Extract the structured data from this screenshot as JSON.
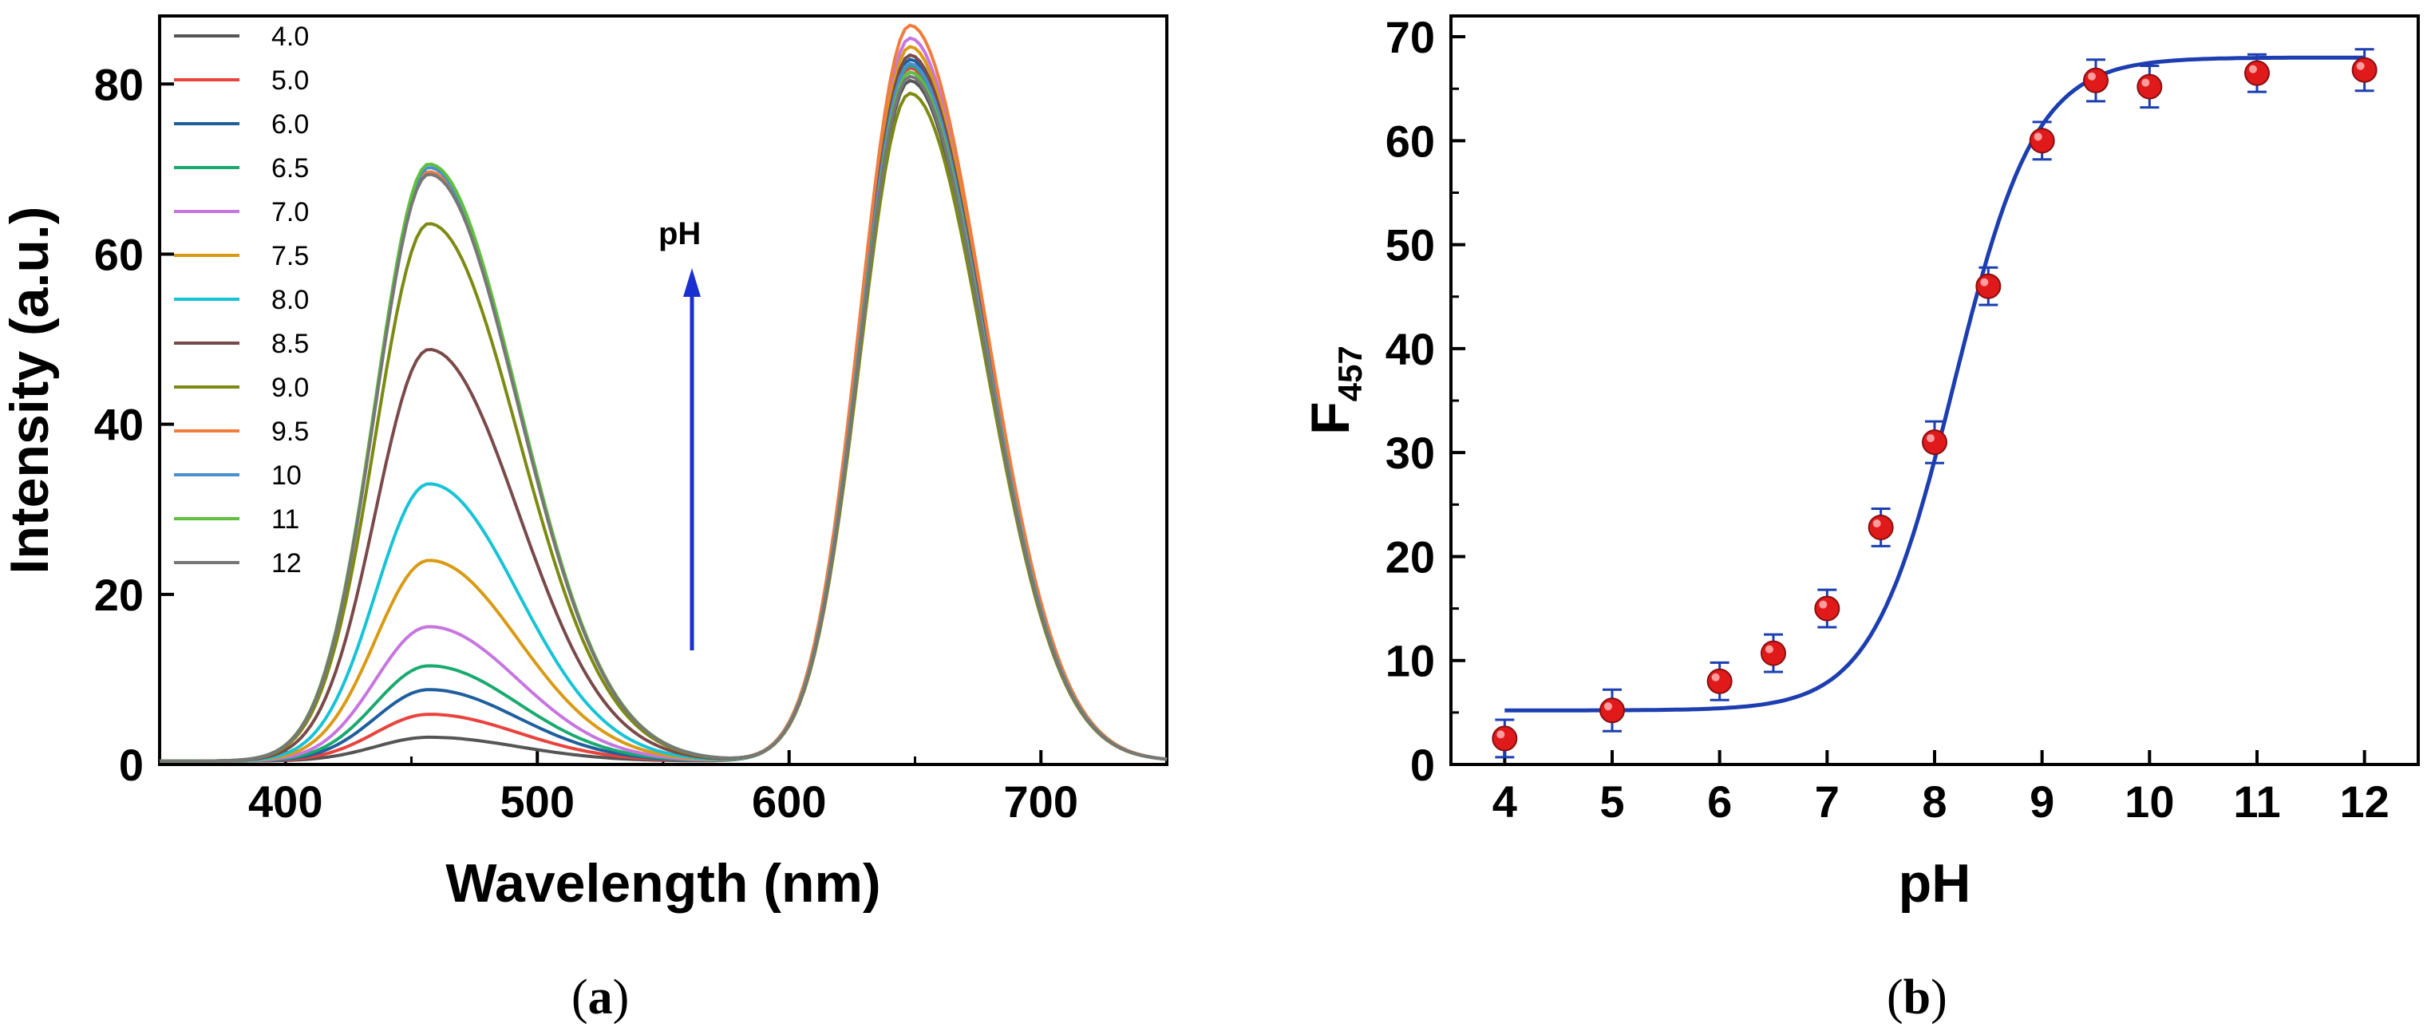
{
  "chart_data": [
    {
      "id": "a",
      "type": "line",
      "panel_label": "a",
      "xlabel": "Wavelength (nm)",
      "ylabel": "Intensity (a.u.)",
      "xlim": [
        350,
        750
      ],
      "ylim": [
        0,
        88
      ],
      "xticks": [
        400,
        500,
        600,
        700
      ],
      "yticks": [
        0,
        20,
        40,
        60,
        80
      ],
      "annotation": "pH",
      "legend_position": "top-left",
      "blue_peak_center": 457,
      "red_peak_center": 648,
      "series": [
        {
          "name": "4.0",
          "color": "#555555",
          "peak_457": 2.8,
          "peak_648": 80.0
        },
        {
          "name": "5.0",
          "color": "#e8433c",
          "peak_457": 5.5,
          "peak_648": 81.5
        },
        {
          "name": "6.0",
          "color": "#1f5f9e",
          "peak_457": 8.4,
          "peak_648": 82.5
        },
        {
          "name": "6.5",
          "color": "#1aaa70",
          "peak_457": 11.2,
          "peak_648": 81.8
        },
        {
          "name": "7.0",
          "color": "#c775e0",
          "peak_457": 15.8,
          "peak_648": 85.0
        },
        {
          "name": "7.5",
          "color": "#d99a14",
          "peak_457": 23.6,
          "peak_648": 84.0
        },
        {
          "name": "8.0",
          "color": "#17c3d6",
          "peak_457": 32.6,
          "peak_648": 81.0
        },
        {
          "name": "8.5",
          "color": "#7a4a4a",
          "peak_457": 48.4,
          "peak_648": 83.0
        },
        {
          "name": "9.0",
          "color": "#7d8a12",
          "peak_457": 63.2,
          "peak_648": 78.5
        },
        {
          "name": "9.5",
          "color": "#f07c3e",
          "peak_457": 69.3,
          "peak_648": 86.5
        },
        {
          "name": "10",
          "color": "#4a8fcf",
          "peak_457": 69.8,
          "peak_648": 82.0
        },
        {
          "name": "11",
          "color": "#5fbf3e",
          "peak_457": 70.2,
          "peak_648": 81.0
        },
        {
          "name": "12",
          "color": "#777777",
          "peak_457": 69.0,
          "peak_648": 80.5
        }
      ]
    },
    {
      "id": "b",
      "type": "scatter",
      "panel_label": "b",
      "xlabel": "pH",
      "ylabel": "F",
      "ylabel_subscript": "457",
      "xlim": [
        3.5,
        12.5
      ],
      "ylim": [
        0,
        72
      ],
      "xticks": [
        4,
        5,
        6,
        7,
        8,
        9,
        10,
        11,
        12
      ],
      "yticks": [
        0,
        10,
        20,
        30,
        40,
        50,
        60,
        70
      ],
      "points": [
        {
          "x": 4,
          "y": 2.5,
          "err": 1.8
        },
        {
          "x": 5,
          "y": 5.2,
          "err": 2.0
        },
        {
          "x": 6,
          "y": 8.0,
          "err": 1.8
        },
        {
          "x": 6.5,
          "y": 10.7,
          "err": 1.8
        },
        {
          "x": 7,
          "y": 15.0,
          "err": 1.8
        },
        {
          "x": 7.5,
          "y": 22.8,
          "err": 1.8
        },
        {
          "x": 8,
          "y": 31.0,
          "err": 2.0
        },
        {
          "x": 8.5,
          "y": 46.0,
          "err": 1.8
        },
        {
          "x": 9,
          "y": 60.0,
          "err": 1.8
        },
        {
          "x": 9.5,
          "y": 65.8,
          "err": 2.0
        },
        {
          "x": 10,
          "y": 65.2,
          "err": 2.0
        },
        {
          "x": 11,
          "y": 66.5,
          "err": 1.8
        },
        {
          "x": 12,
          "y": 66.8,
          "err": 2.0
        }
      ],
      "fit": {
        "type": "sigmoid",
        "bottom": 5.2,
        "top": 68.0,
        "x0": 8.18,
        "slope": 0.38
      },
      "marker_color": "#e0191b",
      "line_color": "#1c3eb0"
    }
  ]
}
